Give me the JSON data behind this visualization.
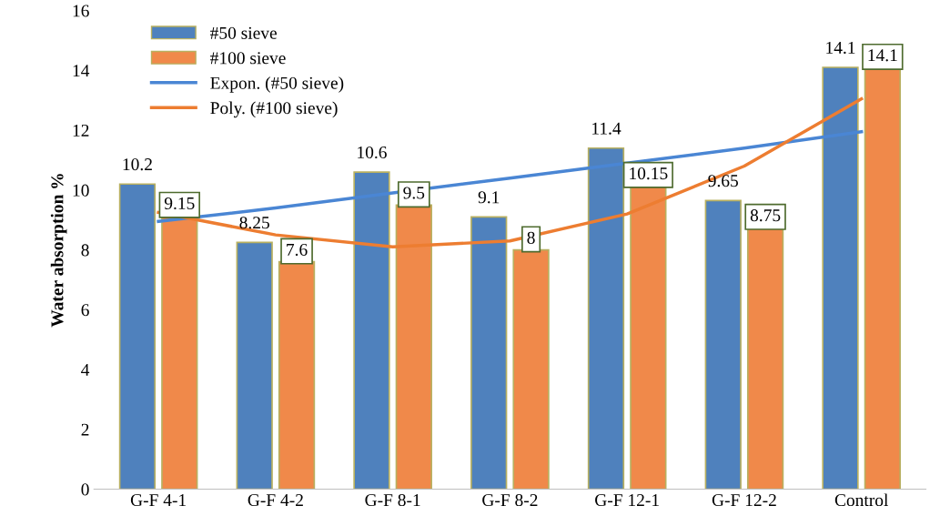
{
  "chart_data": {
    "type": "bar",
    "ylabel": "Water absorption %",
    "categories": [
      "G-F 4-1",
      "G-F 4-2",
      "G-F 8-1",
      "G-F 8-2",
      "G-F 12-1",
      "G-F 12-2",
      "Control"
    ],
    "series": [
      {
        "name": "#50 sieve",
        "color": "#4f81bd",
        "values": [
          10.2,
          8.25,
          10.6,
          9.1,
          11.4,
          9.65,
          14.1
        ],
        "value_labels": [
          "10.2",
          "8.25",
          "10.6",
          "9.1",
          "11.4",
          "9.65",
          "14.1"
        ]
      },
      {
        "name": "#100 sieve",
        "color": "#f0894a",
        "values": [
          9.15,
          7.6,
          9.5,
          8,
          10.15,
          8.75,
          14.1
        ],
        "value_labels": [
          "9.15",
          "7.6",
          "9.5",
          "8",
          "10.15",
          "8.75",
          "14.1"
        ]
      },
      {
        "name": "Expon. (#50 sieve)",
        "type": "line",
        "color": "#4a86d4",
        "values": [
          8.95,
          9.4,
          9.9,
          10.4,
          10.9,
          11.4,
          11.95
        ]
      },
      {
        "name": "Poly. (#100 sieve)",
        "type": "line",
        "color": "#ed7d31",
        "values": [
          9.25,
          8.5,
          8.1,
          8.3,
          9.2,
          10.8,
          13.05
        ]
      }
    ],
    "ylim": [
      0,
      16
    ],
    "yticks": [
      0,
      2,
      4,
      6,
      8,
      10,
      12,
      14,
      16
    ],
    "grid": false,
    "legend": "top left"
  }
}
